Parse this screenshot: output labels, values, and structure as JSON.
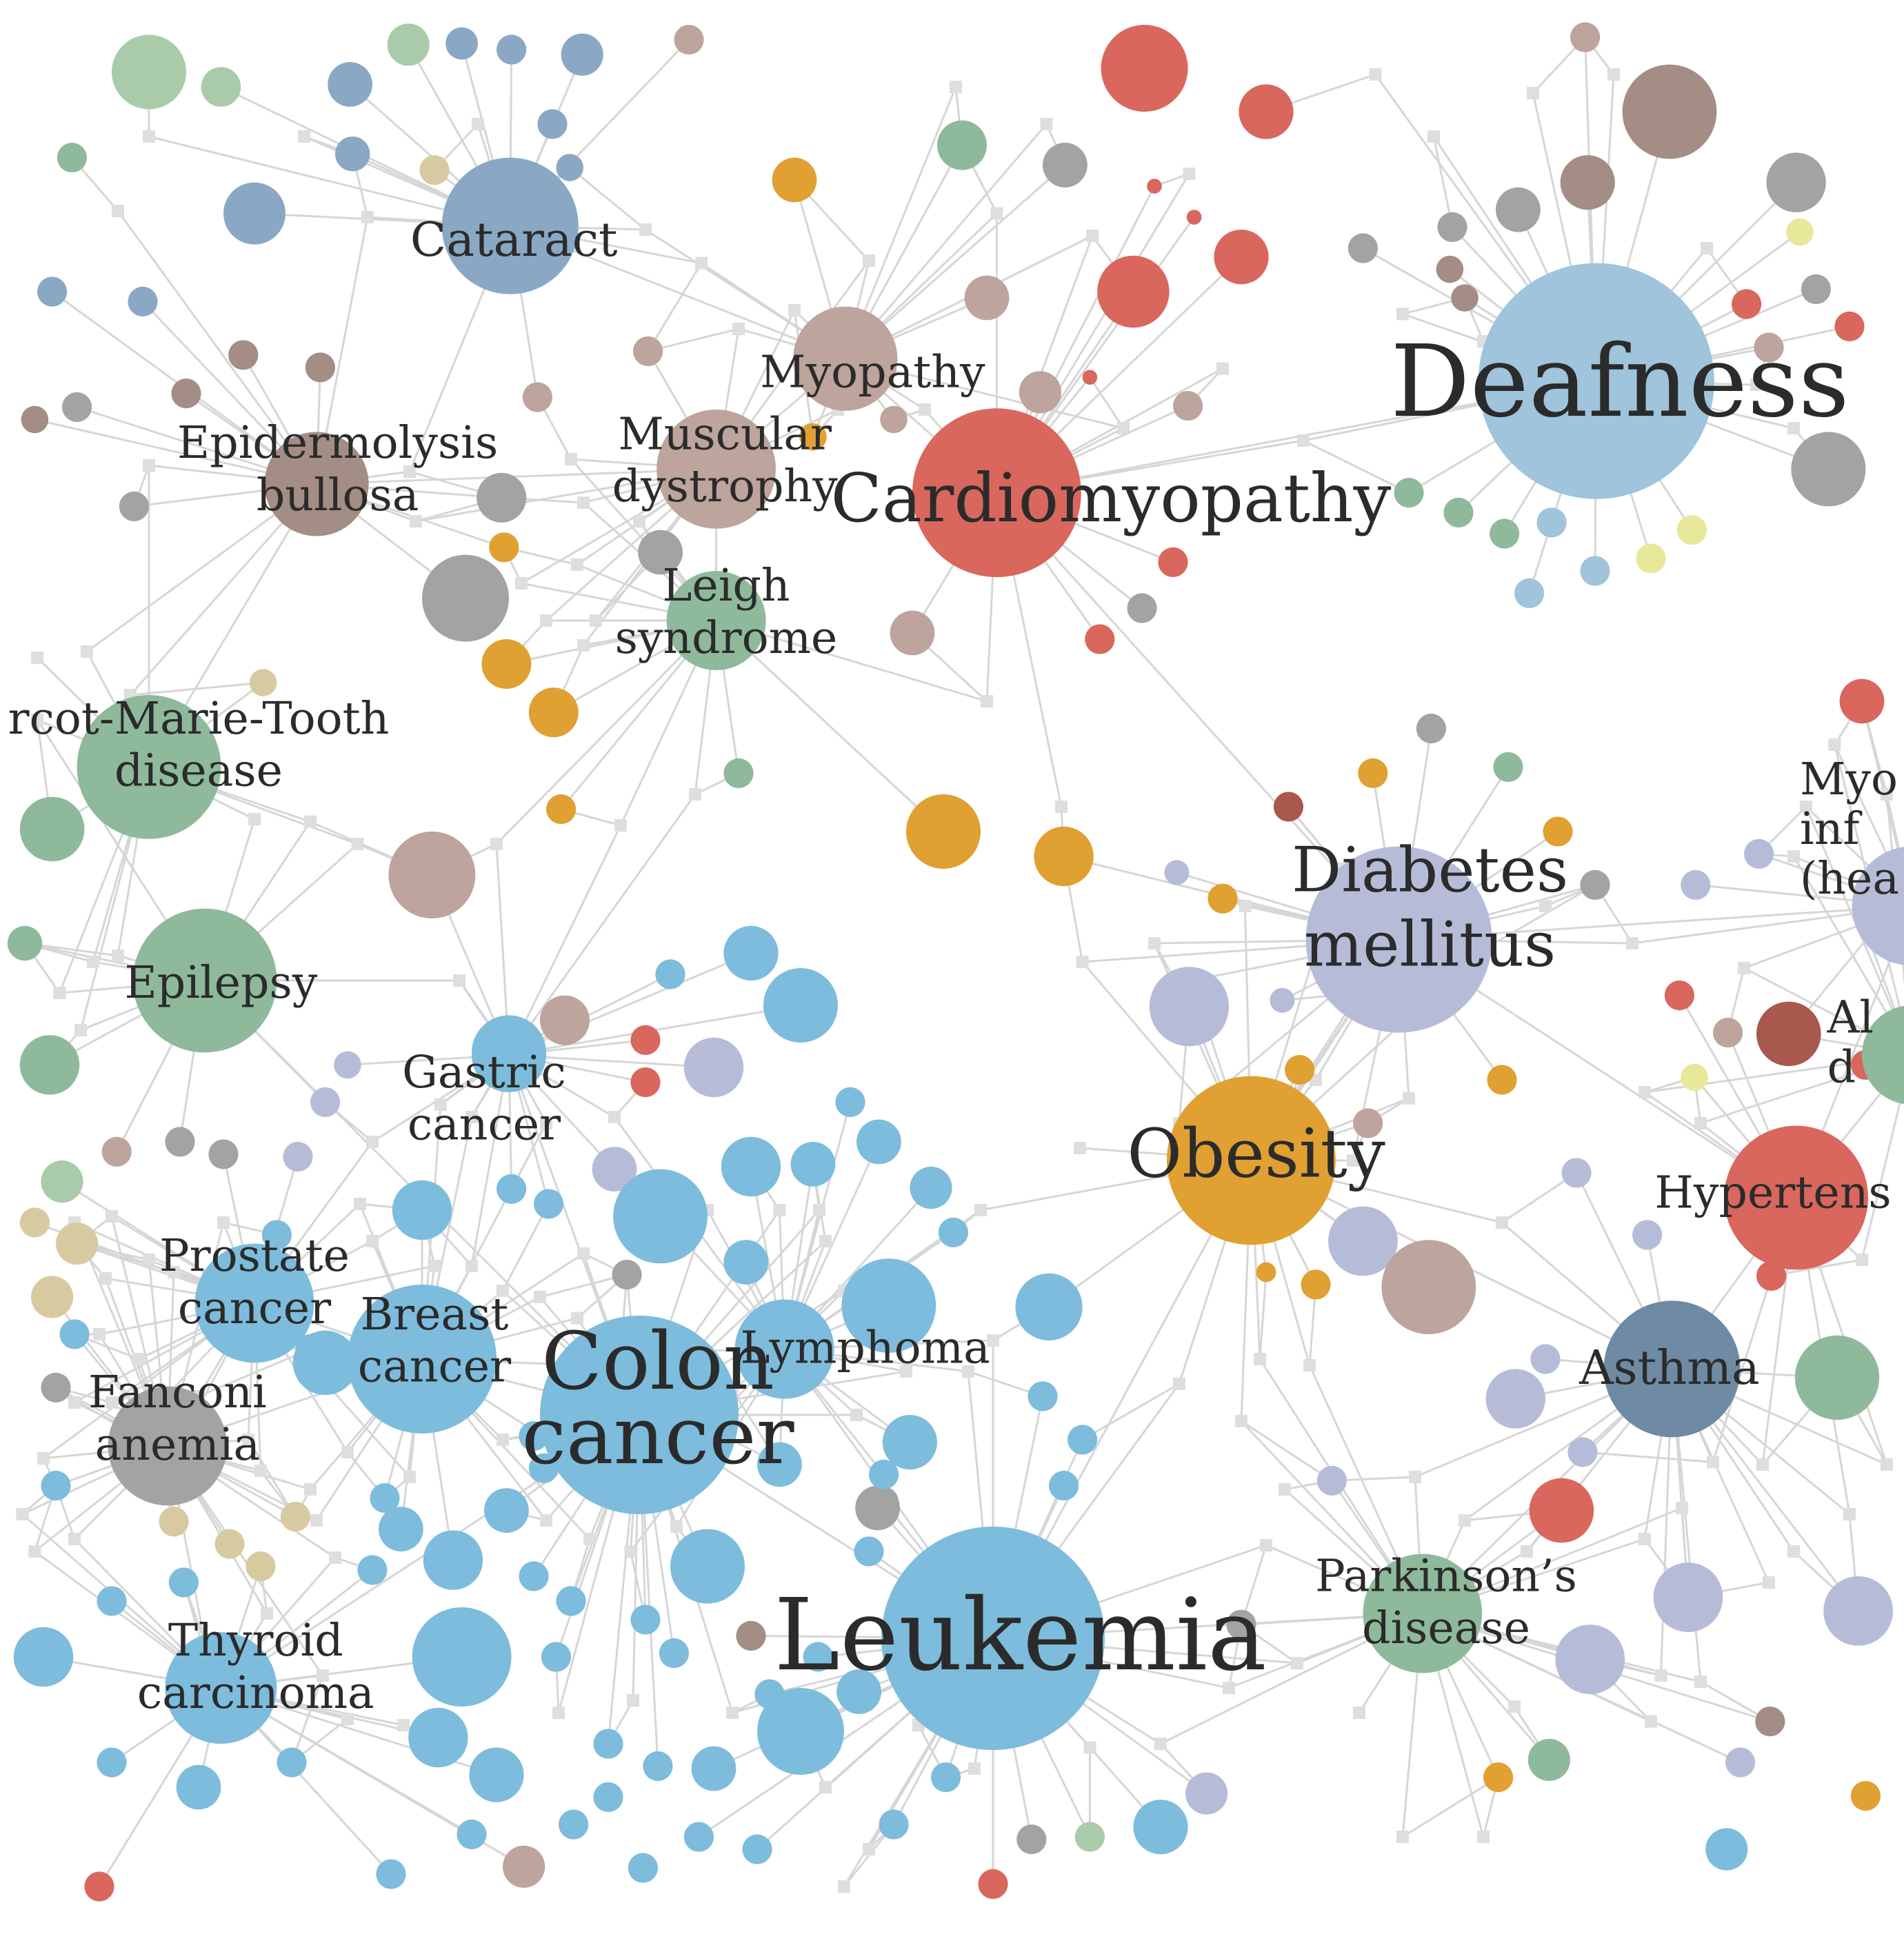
{
  "colors": {
    "background": "#ffffff",
    "edge": "#d6d6d6",
    "gene": "#dedede",
    "label": "#2b2b2b",
    "blue_cancer": "#7dbcdc",
    "blue_gray": "#8aa8c4",
    "light_blue": "#9fc4dc",
    "green": "#8fb99b",
    "light_green": "#a9cba9",
    "red": "#d9675d",
    "dark_red": "#a9584d",
    "orange": "#e0a032",
    "tan": "#bda49c",
    "brown": "#a48d84",
    "gray": "#a3a3a3",
    "lavender": "#b6bcd8",
    "slate": "#6f8aa3",
    "khaki": "#d8caa0",
    "yellow": "#e8e89a"
  },
  "diseases": [
    {
      "key": "deafness",
      "label": [
        "Deafness"
      ]
    },
    {
      "key": "cardiomyopathy",
      "label": [
        "Cardiomyopathy"
      ]
    },
    {
      "key": "cataract",
      "label": [
        "Cataract"
      ]
    },
    {
      "key": "myopathy",
      "label": [
        "Myopathy"
      ]
    },
    {
      "key": "muscular-dystrophy",
      "label": [
        "Muscular",
        "dystrophy"
      ]
    },
    {
      "key": "epidermolysis-bullosa",
      "label": [
        "Epidermolysis",
        "bullosa"
      ]
    },
    {
      "key": "leigh-syndrome",
      "label": [
        "Leigh",
        "syndrome"
      ]
    },
    {
      "key": "charcot-marie-tooth",
      "label": [
        "rcot-Marie-Tooth",
        "disease"
      ]
    },
    {
      "key": "epilepsy",
      "label": [
        "Epilepsy"
      ]
    },
    {
      "key": "diabetes-mellitus",
      "label": [
        "Diabetes",
        "mellitus"
      ]
    },
    {
      "key": "myocardial-infarction",
      "label": [
        "Myo",
        "inf",
        "(hea"
      ]
    },
    {
      "key": "obesity",
      "label": [
        "Obesity"
      ]
    },
    {
      "key": "alzheimer",
      "label": [
        "Al",
        "d"
      ]
    },
    {
      "key": "hypertension",
      "label": [
        "Hypertens"
      ]
    },
    {
      "key": "gastric-cancer",
      "label": [
        "Gastric",
        "cancer"
      ]
    },
    {
      "key": "prostate-cancer",
      "label": [
        "Prostate",
        "cancer"
      ]
    },
    {
      "key": "breast-cancer",
      "label": [
        "Breast",
        "cancer"
      ]
    },
    {
      "key": "colon-cancer",
      "label": [
        "Colon",
        "cancer"
      ]
    },
    {
      "key": "lymphoma",
      "label": [
        "Lymphoma"
      ]
    },
    {
      "key": "fanconi-anemia",
      "label": [
        "Fanconi",
        "anemia"
      ]
    },
    {
      "key": "asthma",
      "label": [
        "Asthma"
      ]
    },
    {
      "key": "thyroid-carcinoma",
      "label": [
        "Thyroid",
        "carcinoma"
      ]
    },
    {
      "key": "leukemia",
      "label": [
        "Leukemia"
      ]
    },
    {
      "key": "parkinsons-disease",
      "label": [
        "Parkinson’s",
        "disease"
      ]
    }
  ]
}
